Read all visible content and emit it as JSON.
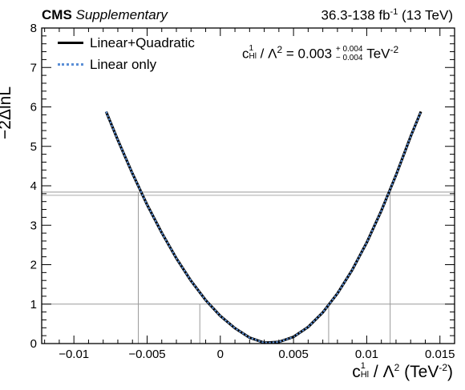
{
  "header": {
    "cms": "CMS",
    "supplementary": "Supplementary",
    "lumi_main": "36.3-138 fb",
    "lumi_sup": "-1",
    "lumi_tail": " (13 TeV)"
  },
  "annotation": {
    "coef": "c",
    "coef_sup": "1",
    "coef_sub": "Hl",
    "mid": " / Λ",
    "mid_sup": "2",
    "eq": " = 0.003",
    "unc_plus": "+ 0.004",
    "unc_minus": "− 0.004",
    "unit": " TeV",
    "unit_sup": "-2"
  },
  "chart_data": {
    "type": "line",
    "title": "",
    "xlabel": {
      "coef": "c",
      "coef_sup": "1",
      "coef_sub": "Hl",
      "mid": " / Λ",
      "mid_sup": "2",
      "unit": " (TeV",
      "unit_sup": "-2",
      "tail": ")"
    },
    "ylabel": "−2ΔlnL",
    "xlim": [
      -0.0122,
      0.016
    ],
    "ylim": [
      0,
      8
    ],
    "xticks": [
      -0.01,
      -0.005,
      0,
      0.005,
      0.01,
      0.015
    ],
    "xtick_labels": [
      "−0.01",
      "−0.005",
      "0",
      "0.005",
      "0.01",
      "0.015"
    ],
    "yticks": [
      0,
      1,
      2,
      3,
      4,
      5,
      6,
      7,
      8
    ],
    "ytick_labels": [
      "0",
      "1",
      "2",
      "3",
      "4",
      "5",
      "6",
      "7",
      "8"
    ],
    "best_fit": 0.003,
    "intervals_1sigma": [
      -0.0014,
      0.0074
    ],
    "intervals_2sigma": [
      -0.0056,
      0.0116
    ],
    "threshold_lines": [
      1.0,
      3.84
    ],
    "legend_placement": "top-left",
    "series": [
      {
        "name": "Linear+Quadratic",
        "color": "#000000",
        "style": "solid",
        "x": [
          -0.0078,
          -0.007,
          -0.006,
          -0.005,
          -0.004,
          -0.003,
          -0.002,
          -0.001,
          0.0,
          0.001,
          0.002,
          0.003,
          0.004,
          0.005,
          0.006,
          0.007,
          0.008,
          0.009,
          0.01,
          0.011,
          0.012,
          0.013,
          0.0137
        ],
        "y": [
          5.88,
          5.16,
          4.31,
          3.52,
          2.81,
          2.16,
          1.59,
          1.1,
          0.7,
          0.39,
          0.15,
          0.02,
          0.04,
          0.17,
          0.42,
          0.79,
          1.27,
          1.86,
          2.56,
          3.37,
          4.27,
          5.25,
          5.88
        ]
      },
      {
        "name": "Linear only",
        "color": "#5b8fd6",
        "style": "dotted",
        "x": [
          -0.0078,
          -0.007,
          -0.006,
          -0.005,
          -0.004,
          -0.003,
          -0.002,
          -0.001,
          0.0,
          0.001,
          0.002,
          0.003,
          0.004,
          0.005,
          0.006,
          0.007,
          0.008,
          0.009,
          0.01,
          0.011,
          0.012,
          0.013,
          0.0137
        ],
        "y": [
          5.88,
          5.16,
          4.31,
          3.52,
          2.81,
          2.16,
          1.59,
          1.1,
          0.7,
          0.39,
          0.15,
          0.02,
          0.04,
          0.17,
          0.42,
          0.79,
          1.27,
          1.86,
          2.56,
          3.37,
          4.27,
          5.25,
          5.88
        ]
      }
    ]
  }
}
